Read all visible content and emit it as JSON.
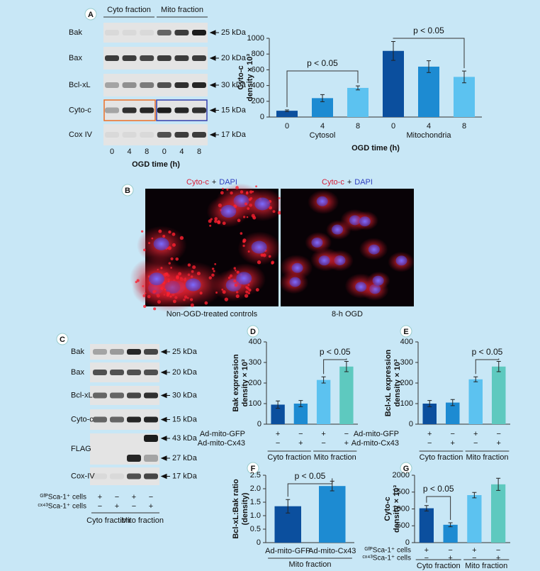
{
  "panel_labels": [
    "A",
    "B",
    "C",
    "D",
    "E",
    "F",
    "G"
  ],
  "blot_a": {
    "fractions": [
      "Cyto fraction",
      "Mito fraction"
    ],
    "proteins": [
      "Bak",
      "Bax",
      "Bcl-xL",
      "Cyto-c",
      "Cox IV"
    ],
    "sizes": [
      "25 kDa",
      "20 kDa",
      "30 kDa",
      "15 kDa",
      "17 kDa"
    ],
    "lanes": [
      "0",
      "4",
      "8",
      "0",
      "4",
      "8"
    ],
    "xlabel": "OGD time (h)"
  },
  "micrographs": [
    {
      "title": [
        "Cyto-c",
        "+",
        "DAPI"
      ],
      "caption": "Non-OGD-treated controls"
    },
    {
      "title": [
        "Cyto-c",
        "+",
        "DAPI"
      ],
      "caption": "8-h OGD"
    }
  ],
  "blot_c": {
    "proteins": [
      "Bak",
      "Bax",
      "Bcl-xL",
      "Cyto-c",
      "FLAG",
      "Cox-IV"
    ],
    "sizes": [
      [
        "25 kDa"
      ],
      [
        "20 kDa"
      ],
      [
        "30 kDa"
      ],
      [
        "15 kDa"
      ],
      [
        "43 kDa",
        "27 kDa"
      ],
      [
        "17 kDa"
      ]
    ],
    "rows": [
      {
        "label": "ᴳᶠᴾSca-1⁺ cells",
        "marks": [
          "+",
          "−",
          "+",
          "−"
        ]
      },
      {
        "label": "ᶜˣ⁴³Sca-1⁺ cells",
        "marks": [
          "−",
          "+",
          "−",
          "+"
        ]
      }
    ],
    "groups": [
      "Cyto fraction",
      "Mito fraction"
    ]
  },
  "chart_data": [
    {
      "type": "bar",
      "ylabel": [
        "Cyto-c",
        "density × 10³"
      ],
      "xlabel": "OGD time (h)",
      "categories": [
        "0",
        "4",
        "8",
        "0",
        "4",
        "8"
      ],
      "groups": [
        "Cytosol",
        "Mitochondria"
      ],
      "values": [
        80,
        240,
        370,
        840,
        640,
        510
      ],
      "errors": [
        10,
        45,
        25,
        120,
        75,
        75
      ],
      "colors": [
        "#0b4f9e",
        "#1d8bd2",
        "#5cc2f0",
        "#0b4f9e",
        "#1d8bd2",
        "#5cc2f0"
      ],
      "ylim": [
        0,
        1000
      ],
      "yticks": [
        0,
        200,
        400,
        600,
        800,
        1000
      ],
      "annotations": [
        {
          "text": "p < 0.05"
        },
        {
          "text": "p < 0.05"
        }
      ]
    },
    {
      "type": "bar",
      "ylabel": [
        "Bak expression",
        "density × 10³"
      ],
      "rows": [
        {
          "label": "Ad-mito-GFP",
          "marks": [
            "+",
            "−",
            "+",
            "−"
          ]
        },
        {
          "label": "Ad-mito-Cx43",
          "marks": [
            "−",
            "+",
            "−",
            "+"
          ]
        }
      ],
      "groups": [
        "Cyto fraction",
        "Mito fraction"
      ],
      "values": [
        95,
        100,
        215,
        280
      ],
      "errors": [
        18,
        15,
        15,
        25
      ],
      "colors": [
        "#0b4f9e",
        "#1d8bd2",
        "#5cc2f0",
        "#5ec9bf"
      ],
      "ylim": [
        0,
        400
      ],
      "yticks": [
        0,
        100,
        200,
        300,
        400
      ],
      "annotations": [
        {
          "text": "p < 0.05"
        }
      ]
    },
    {
      "type": "bar",
      "ylabel": [
        "Bcl-xL expression",
        "density × 10³"
      ],
      "rows": [
        {
          "label": "Ad-mito-GFP",
          "marks": [
            "+",
            "−",
            "+",
            "−"
          ]
        },
        {
          "label": "Ad-mito-Cx43",
          "marks": [
            "−",
            "+",
            "−",
            "+"
          ]
        }
      ],
      "groups": [
        "Cyto fraction",
        "Mito fraction"
      ],
      "values": [
        100,
        105,
        218,
        280
      ],
      "errors": [
        15,
        15,
        12,
        25
      ],
      "colors": [
        "#0b4f9e",
        "#1d8bd2",
        "#5cc2f0",
        "#5ec9bf"
      ],
      "ylim": [
        0,
        400
      ],
      "yticks": [
        0,
        100,
        200,
        300,
        400
      ],
      "annotations": [
        {
          "text": "p < 0.05"
        }
      ]
    },
    {
      "type": "bar",
      "ylabel": [
        "Bcl-xL:Bak ratio",
        "(density)"
      ],
      "categories": [
        "Ad-mito-GFP",
        "Ad-mito-Cx43"
      ],
      "groups": [
        "Mito fraction"
      ],
      "values": [
        1.35,
        2.1
      ],
      "errors": [
        0.25,
        0.18
      ],
      "colors": [
        "#0b4f9e",
        "#1d8bd2"
      ],
      "ylim": [
        0,
        2.5
      ],
      "yticks": [
        0,
        0.5,
        {
          "value": 1,
          "label": "1.0"
        },
        1.5,
        {
          "value": 2,
          "label": "2.0"
        },
        2.5
      ],
      "annotations": [
        {
          "text": "p < 0.05"
        }
      ]
    },
    {
      "type": "bar",
      "ylabel": [
        "Cyto-c",
        "density × 10³"
      ],
      "rows": [
        {
          "label": "ᴳᶠᴾSca-1⁺ cells",
          "marks": [
            "+",
            "−",
            "+",
            "−"
          ]
        },
        {
          "label": "ᶜˣ⁴³Sca-1⁺ cells",
          "marks": [
            "−",
            "+",
            "−",
            "+"
          ]
        }
      ],
      "groups": [
        "Cyto fraction",
        "Mito fraction"
      ],
      "values": [
        1020,
        530,
        1410,
        1730
      ],
      "errors": [
        80,
        60,
        80,
        180
      ],
      "colors": [
        "#0b4f9e",
        "#1d8bd2",
        "#5cc2f0",
        "#5ec9bf"
      ],
      "ylim": [
        0,
        2000
      ],
      "yticks": [
        0,
        500,
        1000,
        1500,
        2000
      ],
      "annotations": [
        {
          "text": "p < 0.05"
        }
      ]
    }
  ]
}
